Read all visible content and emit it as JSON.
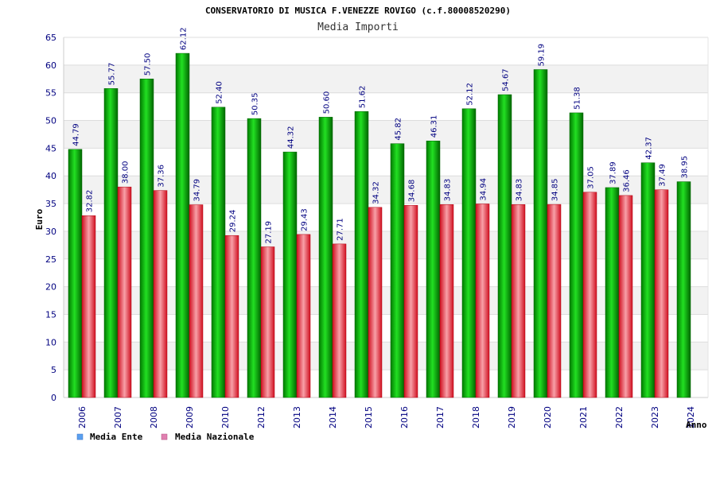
{
  "header": {
    "title": "CONSERVATORIO DI MUSICA F.VENEZZE ROVIGO (c.f.80008520290)",
    "subtitle": "Media Importi"
  },
  "colors": {
    "ente": "#00b000",
    "nazionale": "#e8202a",
    "legend_ente": "#5aa0f0",
    "legend_nazionale": "#e080b0",
    "band": "#f2f2f2",
    "axis_text": "#000080"
  },
  "chart_data": {
    "type": "bar",
    "title": "CONSERVATORIO DI MUSICA F.VENEZZE ROVIGO (c.f.80008520290)",
    "subtitle": "Media Importi",
    "xlabel": "Anno",
    "ylabel": "Euro",
    "ylim": [
      0,
      65
    ],
    "ystep": 5,
    "yticks": [
      "0",
      "5",
      "10",
      "15",
      "20",
      "25",
      "30",
      "35",
      "40",
      "45",
      "50",
      "55",
      "60",
      "65"
    ],
    "categories": [
      "2006",
      "2007",
      "2008",
      "2009",
      "2010",
      "2012",
      "2013",
      "2014",
      "2015",
      "2016",
      "2017",
      "2018",
      "2019",
      "2020",
      "2021",
      "2022",
      "2023",
      "2024"
    ],
    "series": [
      {
        "name": "Media Ente",
        "values": [
          44.79,
          55.77,
          57.5,
          62.12,
          52.4,
          50.35,
          44.32,
          50.6,
          51.62,
          45.82,
          46.31,
          52.12,
          54.67,
          59.19,
          51.38,
          37.89,
          42.37,
          38.95
        ],
        "labels": [
          "44.79",
          "55.77",
          "57.50",
          "62.12",
          "52.40",
          "50.35",
          "44.32",
          "50.60",
          "51.62",
          "45.82",
          "46.31",
          "52.12",
          "54.67",
          "59.19",
          "51.38",
          "37.89",
          "42.37",
          "38.95"
        ]
      },
      {
        "name": "Media Nazionale",
        "values": [
          32.82,
          38.0,
          37.36,
          34.79,
          29.24,
          27.19,
          29.43,
          27.71,
          34.32,
          34.68,
          34.83,
          34.94,
          34.83,
          34.85,
          37.05,
          36.46,
          37.49,
          null
        ],
        "labels": [
          "32.82",
          "38.00",
          "37.36",
          "34.79",
          "29.24",
          "27.19",
          "29.43",
          "27.71",
          "34.32",
          "34.68",
          "34.83",
          "34.94",
          "34.83",
          "34.85",
          "37.05",
          "36.46",
          "37.49",
          null
        ]
      }
    ],
    "legend": [
      "Media Ente",
      "Media Nazionale"
    ],
    "legend_position": "bottom-left",
    "grid": true
  }
}
